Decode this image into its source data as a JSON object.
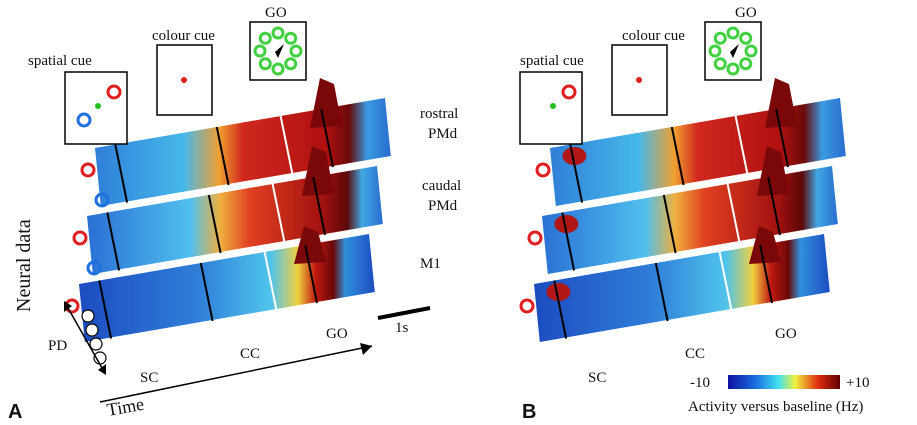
{
  "panels": [
    {
      "label": "A",
      "cues": [
        "spatial cue",
        "colour cue",
        "GO"
      ],
      "events": [
        "SC",
        "CC",
        "GO"
      ]
    },
    {
      "label": "B",
      "cues": [
        "spatial cue",
        "colour cue",
        "GO"
      ],
      "events": [
        "SC",
        "CC",
        "GO"
      ]
    }
  ],
  "areas": [
    {
      "lines": [
        "rostral",
        "PMd"
      ]
    },
    {
      "lines": [
        "caudal",
        "PMd"
      ]
    },
    {
      "lines": [
        "M1"
      ]
    }
  ],
  "y_axis": "Neural data",
  "x_axis": "Time",
  "pd_label": "PD",
  "scale_bar": "1s",
  "colorbar": {
    "min_label": "-10",
    "max_label": "+10",
    "title": "Activity versus baseline (Hz)"
  }
}
